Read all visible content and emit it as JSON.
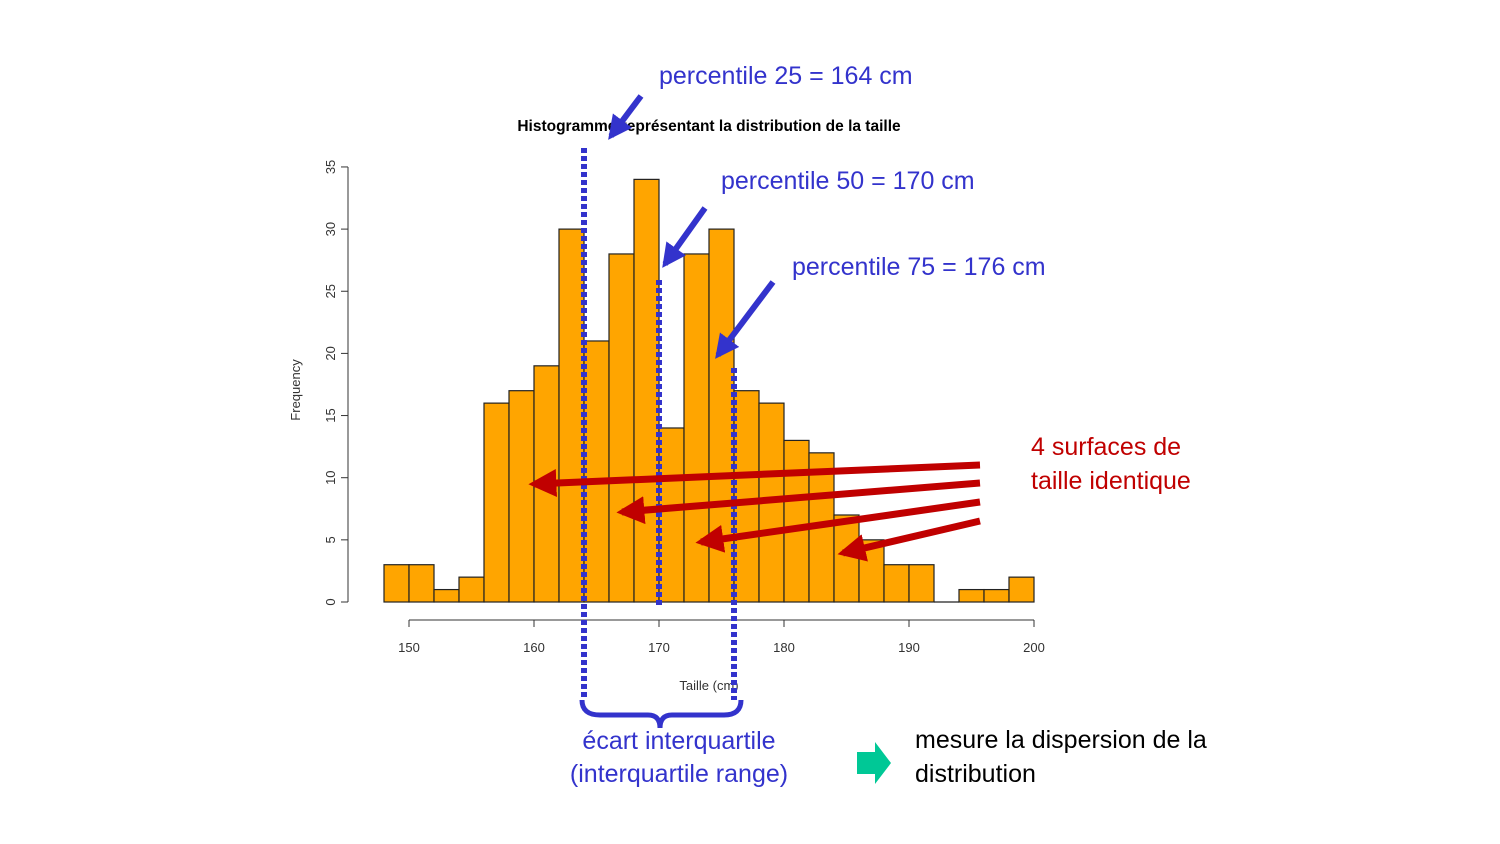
{
  "colors": {
    "bar_fill": "#ffa500",
    "bar_stroke": "#222222",
    "percentile_blue": "#3333cc",
    "surface_red": "#c00000",
    "note_arrow_green": "#00c896"
  },
  "chart_data": {
    "type": "bar",
    "title": "Histogramme représentant la distribution de la taille",
    "xlabel": "Taille (cm)",
    "ylabel": "Frequency",
    "xlim": [
      150,
      200
    ],
    "ylim": [
      0,
      35
    ],
    "bin_width": 2,
    "bins": [
      {
        "start": 148,
        "count": 3
      },
      {
        "start": 150,
        "count": 3
      },
      {
        "start": 152,
        "count": 1
      },
      {
        "start": 154,
        "count": 2
      },
      {
        "start": 156,
        "count": 16
      },
      {
        "start": 158,
        "count": 17
      },
      {
        "start": 160,
        "count": 19
      },
      {
        "start": 162,
        "count": 30
      },
      {
        "start": 164,
        "count": 21
      },
      {
        "start": 166,
        "count": 28
      },
      {
        "start": 168,
        "count": 34
      },
      {
        "start": 170,
        "count": 14
      },
      {
        "start": 172,
        "count": 28
      },
      {
        "start": 174,
        "count": 30
      },
      {
        "start": 176,
        "count": 17
      },
      {
        "start": 178,
        "count": 16
      },
      {
        "start": 180,
        "count": 13
      },
      {
        "start": 182,
        "count": 12
      },
      {
        "start": 184,
        "count": 7
      },
      {
        "start": 186,
        "count": 5
      },
      {
        "start": 188,
        "count": 3
      },
      {
        "start": 190,
        "count": 3
      },
      {
        "start": 192,
        "count": 0
      },
      {
        "start": 194,
        "count": 1
      },
      {
        "start": 196,
        "count": 1
      },
      {
        "start": 198,
        "count": 2
      }
    ],
    "x_ticks": [
      "150",
      "160",
      "170",
      "180",
      "190",
      "200"
    ],
    "y_ticks": [
      "0",
      "5",
      "10",
      "15",
      "20",
      "25",
      "30",
      "35"
    ],
    "percentile_lines": [
      {
        "name": "p25",
        "value": 164
      },
      {
        "name": "p50",
        "value": 170
      },
      {
        "name": "p75",
        "value": 176
      }
    ]
  },
  "annotations": {
    "p25": "percentile 25 = 164 cm",
    "p50": "percentile 50 = 170 cm",
    "p75": "percentile 75 = 176 cm",
    "surfaces_line1": "4 surfaces de",
    "surfaces_line2": "taille identique",
    "iqr_line1": "écart interquartile",
    "iqr_line2": "(interquartile range)",
    "note_line1": "mesure la dispersion de la",
    "note_line2": "distribution"
  }
}
